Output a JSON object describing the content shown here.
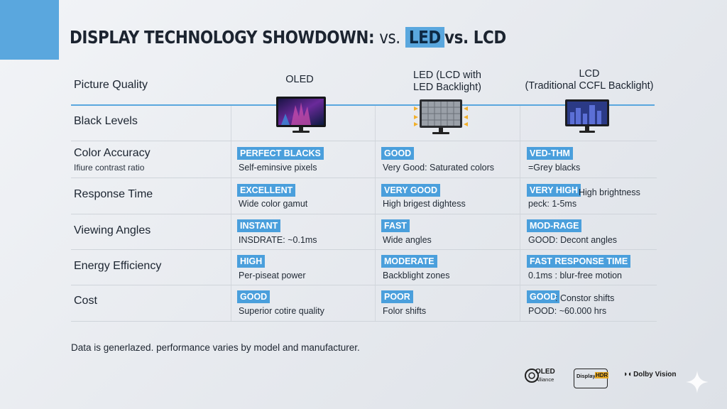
{
  "title": {
    "part1": "DISPLAY TECHNOLOGY SHOWDOWN:",
    "vs1": "vs.",
    "led": "LED",
    "part2": "vs. LCD"
  },
  "columns": {
    "oled": {
      "line1": "OLED"
    },
    "led": {
      "line1": "LED (LCD with",
      "line2": "LED Backlight)"
    },
    "lcd": {
      "line1": "LCD",
      "line2": "(Traditional CCFL Backlight)"
    }
  },
  "rows": {
    "picture_quality": "Picture Quality",
    "black_levels": "Black Levels",
    "color_accuracy": "Color Accuracy",
    "color_accuracy_sub": "Ifiure contrast ratio",
    "response_time": "Response Time",
    "viewing_angles": "Viewing Angles",
    "energy_efficiency": "Energy Efficiency",
    "cost": "Cost"
  },
  "cells": {
    "r1": {
      "oled_badge": "PERFECT BLACKS",
      "oled_desc": "Self-eminsive pixels",
      "led_badge": "GOOD",
      "led_desc": "Very Good: Saturated colors",
      "lcd_badge": "VED-THM",
      "lcd_desc": "=Grey blacks"
    },
    "r2": {
      "oled_badge": "EXCELLENT",
      "oled_desc": "Wide color gamut",
      "led_badge": "VERY GOOD",
      "led_desc": "High brigest dightess",
      "lcd_badge": "VERY HIGH",
      "lcd_extra": "High brightness",
      "lcd_desc": "peck: 1-5ms"
    },
    "r3": {
      "oled_badge": "INSTANT",
      "oled_desc": "INSDRATE: ~0.1ms",
      "led_badge": "FAST",
      "led_desc": "Wide angles",
      "lcd_badge": "MOD-RAGE",
      "lcd_desc": "GOOD: Decont angles"
    },
    "r4": {
      "oled_badge": "HIGH",
      "oled_desc": "Per-piseat power",
      "led_badge": "MODERATE",
      "led_desc": "Backblight zones",
      "lcd_badge": "FAST RESPONSE TIME",
      "lcd_desc": "0.1ms : blur-free motion"
    },
    "r5": {
      "oled_badge": "GOOD",
      "oled_desc": "Superior cotire quality",
      "led_badge": "POOR",
      "led_desc": "Folor shifts",
      "lcd_badge": "GOOD",
      "lcd_extra": ": Constor shifts",
      "lcd_desc": "POOD: ~60.000 hrs"
    }
  },
  "footnote": "Data is generlazed. performance varies by model and manufacturer.",
  "logos": {
    "oled_alliance_1": "OLED",
    "oled_alliance_2": "Alliance",
    "display_hdr_1": "Display",
    "display_hdr_2": "HDR",
    "dolby": "Dolby Vision"
  },
  "colors": {
    "accent": "#5aa7de",
    "badge": "#4a9fdc"
  }
}
